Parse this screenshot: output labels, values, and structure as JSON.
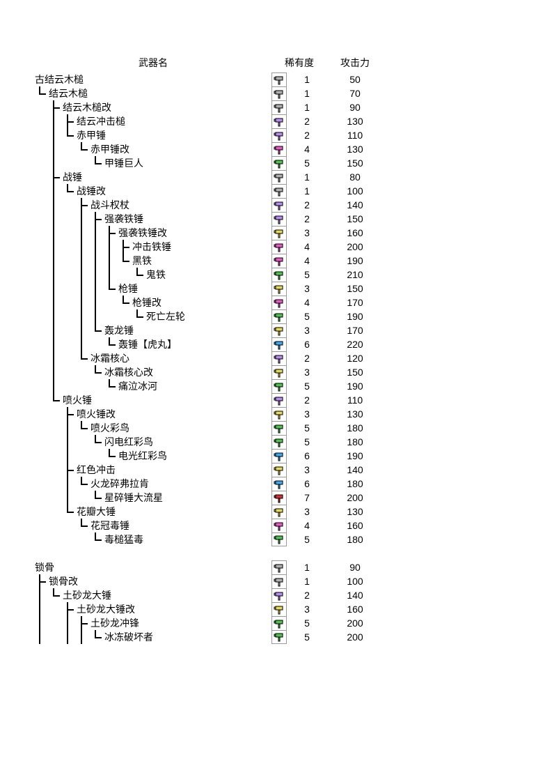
{
  "headers": {
    "name": "武器名",
    "rarity": "稀有度",
    "attack": "攻击力"
  },
  "rarity_colors": {
    "1": "#b0b0b0",
    "2": "#b98cf0",
    "3": "#e6d858",
    "4": "#e858c8",
    "5": "#4fc24f",
    "6": "#3fa8ef",
    "7": "#d03030"
  },
  "rows": [
    {
      "indent": [],
      "name": "古结云木槌",
      "rarity": 1,
      "attack": 50
    },
    {
      "indent": [
        "elbow"
      ],
      "name": "结云木槌",
      "rarity": 1,
      "attack": 70
    },
    {
      "indent": [
        "none",
        "tee"
      ],
      "name": "结云木槌改",
      "rarity": 1,
      "attack": 90
    },
    {
      "indent": [
        "none",
        "vbar",
        "tee"
      ],
      "name": "结云冲击槌",
      "rarity": 2,
      "attack": 130
    },
    {
      "indent": [
        "none",
        "vbar",
        "elbow"
      ],
      "name": "赤甲锤",
      "rarity": 2,
      "attack": 110
    },
    {
      "indent": [
        "none",
        "vbar",
        "none",
        "elbow"
      ],
      "name": "赤甲锤改",
      "rarity": 4,
      "attack": 130
    },
    {
      "indent": [
        "none",
        "vbar",
        "none",
        "none",
        "elbow"
      ],
      "name": "甲锤巨人",
      "rarity": 5,
      "attack": 150
    },
    {
      "indent": [
        "none",
        "tee"
      ],
      "name": "战锤",
      "rarity": 1,
      "attack": 80
    },
    {
      "indent": [
        "none",
        "vbar",
        "elbow"
      ],
      "name": "战锤改",
      "rarity": 1,
      "attack": 100
    },
    {
      "indent": [
        "none",
        "vbar",
        "none",
        "tee"
      ],
      "name": "战斗权杖",
      "rarity": 2,
      "attack": 140
    },
    {
      "indent": [
        "none",
        "vbar",
        "none",
        "vbar",
        "tee"
      ],
      "name": "强袭铁锤",
      "rarity": 2,
      "attack": 150
    },
    {
      "indent": [
        "none",
        "vbar",
        "none",
        "vbar",
        "vbar",
        "tee"
      ],
      "name": "强袭铁锤改",
      "rarity": 3,
      "attack": 160
    },
    {
      "indent": [
        "none",
        "vbar",
        "none",
        "vbar",
        "vbar",
        "vbar",
        "tee"
      ],
      "name": "冲击铁锤",
      "rarity": 4,
      "attack": 200
    },
    {
      "indent": [
        "none",
        "vbar",
        "none",
        "vbar",
        "vbar",
        "vbar",
        "elbow"
      ],
      "name": "黑铁",
      "rarity": 4,
      "attack": 190
    },
    {
      "indent": [
        "none",
        "vbar",
        "none",
        "vbar",
        "vbar",
        "vbar",
        "none",
        "elbow"
      ],
      "name": "鬼铁",
      "rarity": 5,
      "attack": 210
    },
    {
      "indent": [
        "none",
        "vbar",
        "none",
        "vbar",
        "vbar",
        "elbow"
      ],
      "name": "枪锤",
      "rarity": 3,
      "attack": 150
    },
    {
      "indent": [
        "none",
        "vbar",
        "none",
        "vbar",
        "vbar",
        "none",
        "elbow"
      ],
      "name": "枪锤改",
      "rarity": 4,
      "attack": 170
    },
    {
      "indent": [
        "none",
        "vbar",
        "none",
        "vbar",
        "vbar",
        "none",
        "none",
        "elbow"
      ],
      "name": "死亡左轮",
      "rarity": 5,
      "attack": 190
    },
    {
      "indent": [
        "none",
        "vbar",
        "none",
        "vbar",
        "elbow"
      ],
      "name": "轰龙锤",
      "rarity": 3,
      "attack": 170
    },
    {
      "indent": [
        "none",
        "vbar",
        "none",
        "vbar",
        "none",
        "elbow"
      ],
      "name": "轰锤【虎丸】",
      "rarity": 6,
      "attack": 220
    },
    {
      "indent": [
        "none",
        "vbar",
        "none",
        "elbow"
      ],
      "name": "冰霜核心",
      "rarity": 2,
      "attack": 120
    },
    {
      "indent": [
        "none",
        "vbar",
        "none",
        "none",
        "elbow"
      ],
      "name": "冰霜核心改",
      "rarity": 3,
      "attack": 150
    },
    {
      "indent": [
        "none",
        "vbar",
        "none",
        "none",
        "none",
        "elbow"
      ],
      "name": "痛泣冰河",
      "rarity": 5,
      "attack": 190
    },
    {
      "indent": [
        "none",
        "elbow"
      ],
      "name": "喷火锤",
      "rarity": 2,
      "attack": 110
    },
    {
      "indent": [
        "none",
        "none",
        "tee"
      ],
      "name": "喷火锤改",
      "rarity": 3,
      "attack": 130
    },
    {
      "indent": [
        "none",
        "none",
        "vbar",
        "elbow"
      ],
      "name": "喷火彩鸟",
      "rarity": 5,
      "attack": 180
    },
    {
      "indent": [
        "none",
        "none",
        "vbar",
        "none",
        "elbow"
      ],
      "name": "闪电红彩鸟",
      "rarity": 5,
      "attack": 180
    },
    {
      "indent": [
        "none",
        "none",
        "vbar",
        "none",
        "none",
        "elbow"
      ],
      "name": "电光红彩鸟",
      "rarity": 6,
      "attack": 190
    },
    {
      "indent": [
        "none",
        "none",
        "tee"
      ],
      "name": "红色冲击",
      "rarity": 3,
      "attack": 140
    },
    {
      "indent": [
        "none",
        "none",
        "vbar",
        "elbow"
      ],
      "name": "火龙碎弗拉肯",
      "rarity": 6,
      "attack": 180
    },
    {
      "indent": [
        "none",
        "none",
        "vbar",
        "none",
        "elbow"
      ],
      "name": "星碎锤大流星",
      "rarity": 7,
      "attack": 200
    },
    {
      "indent": [
        "none",
        "none",
        "elbow"
      ],
      "name": "花瓣大锤",
      "rarity": 3,
      "attack": 130
    },
    {
      "indent": [
        "none",
        "none",
        "none",
        "elbow"
      ],
      "name": "花冠毒锤",
      "rarity": 4,
      "attack": 160
    },
    {
      "indent": [
        "none",
        "none",
        "none",
        "none",
        "elbow"
      ],
      "name": "毒槌猛毒",
      "rarity": 5,
      "attack": 180
    },
    {
      "spacer": true
    },
    {
      "indent": [],
      "name": "锁骨",
      "rarity": 1,
      "attack": 90
    },
    {
      "indent": [
        "tee"
      ],
      "name": "锁骨改",
      "rarity": 1,
      "attack": 100
    },
    {
      "indent": [
        "vbar",
        "elbow"
      ],
      "name": "土砂龙大锤",
      "rarity": 2,
      "attack": 140
    },
    {
      "indent": [
        "vbar",
        "none",
        "tee"
      ],
      "name": "土砂龙大锤改",
      "rarity": 3,
      "attack": 160
    },
    {
      "indent": [
        "vbar",
        "none",
        "vbar",
        "tee"
      ],
      "name": "土砂龙冲锋",
      "rarity": 5,
      "attack": 200
    },
    {
      "indent": [
        "vbar",
        "none",
        "vbar",
        "vbar",
        "elbow"
      ],
      "name": "冰冻破坏者",
      "rarity": 5,
      "attack": 200
    }
  ]
}
